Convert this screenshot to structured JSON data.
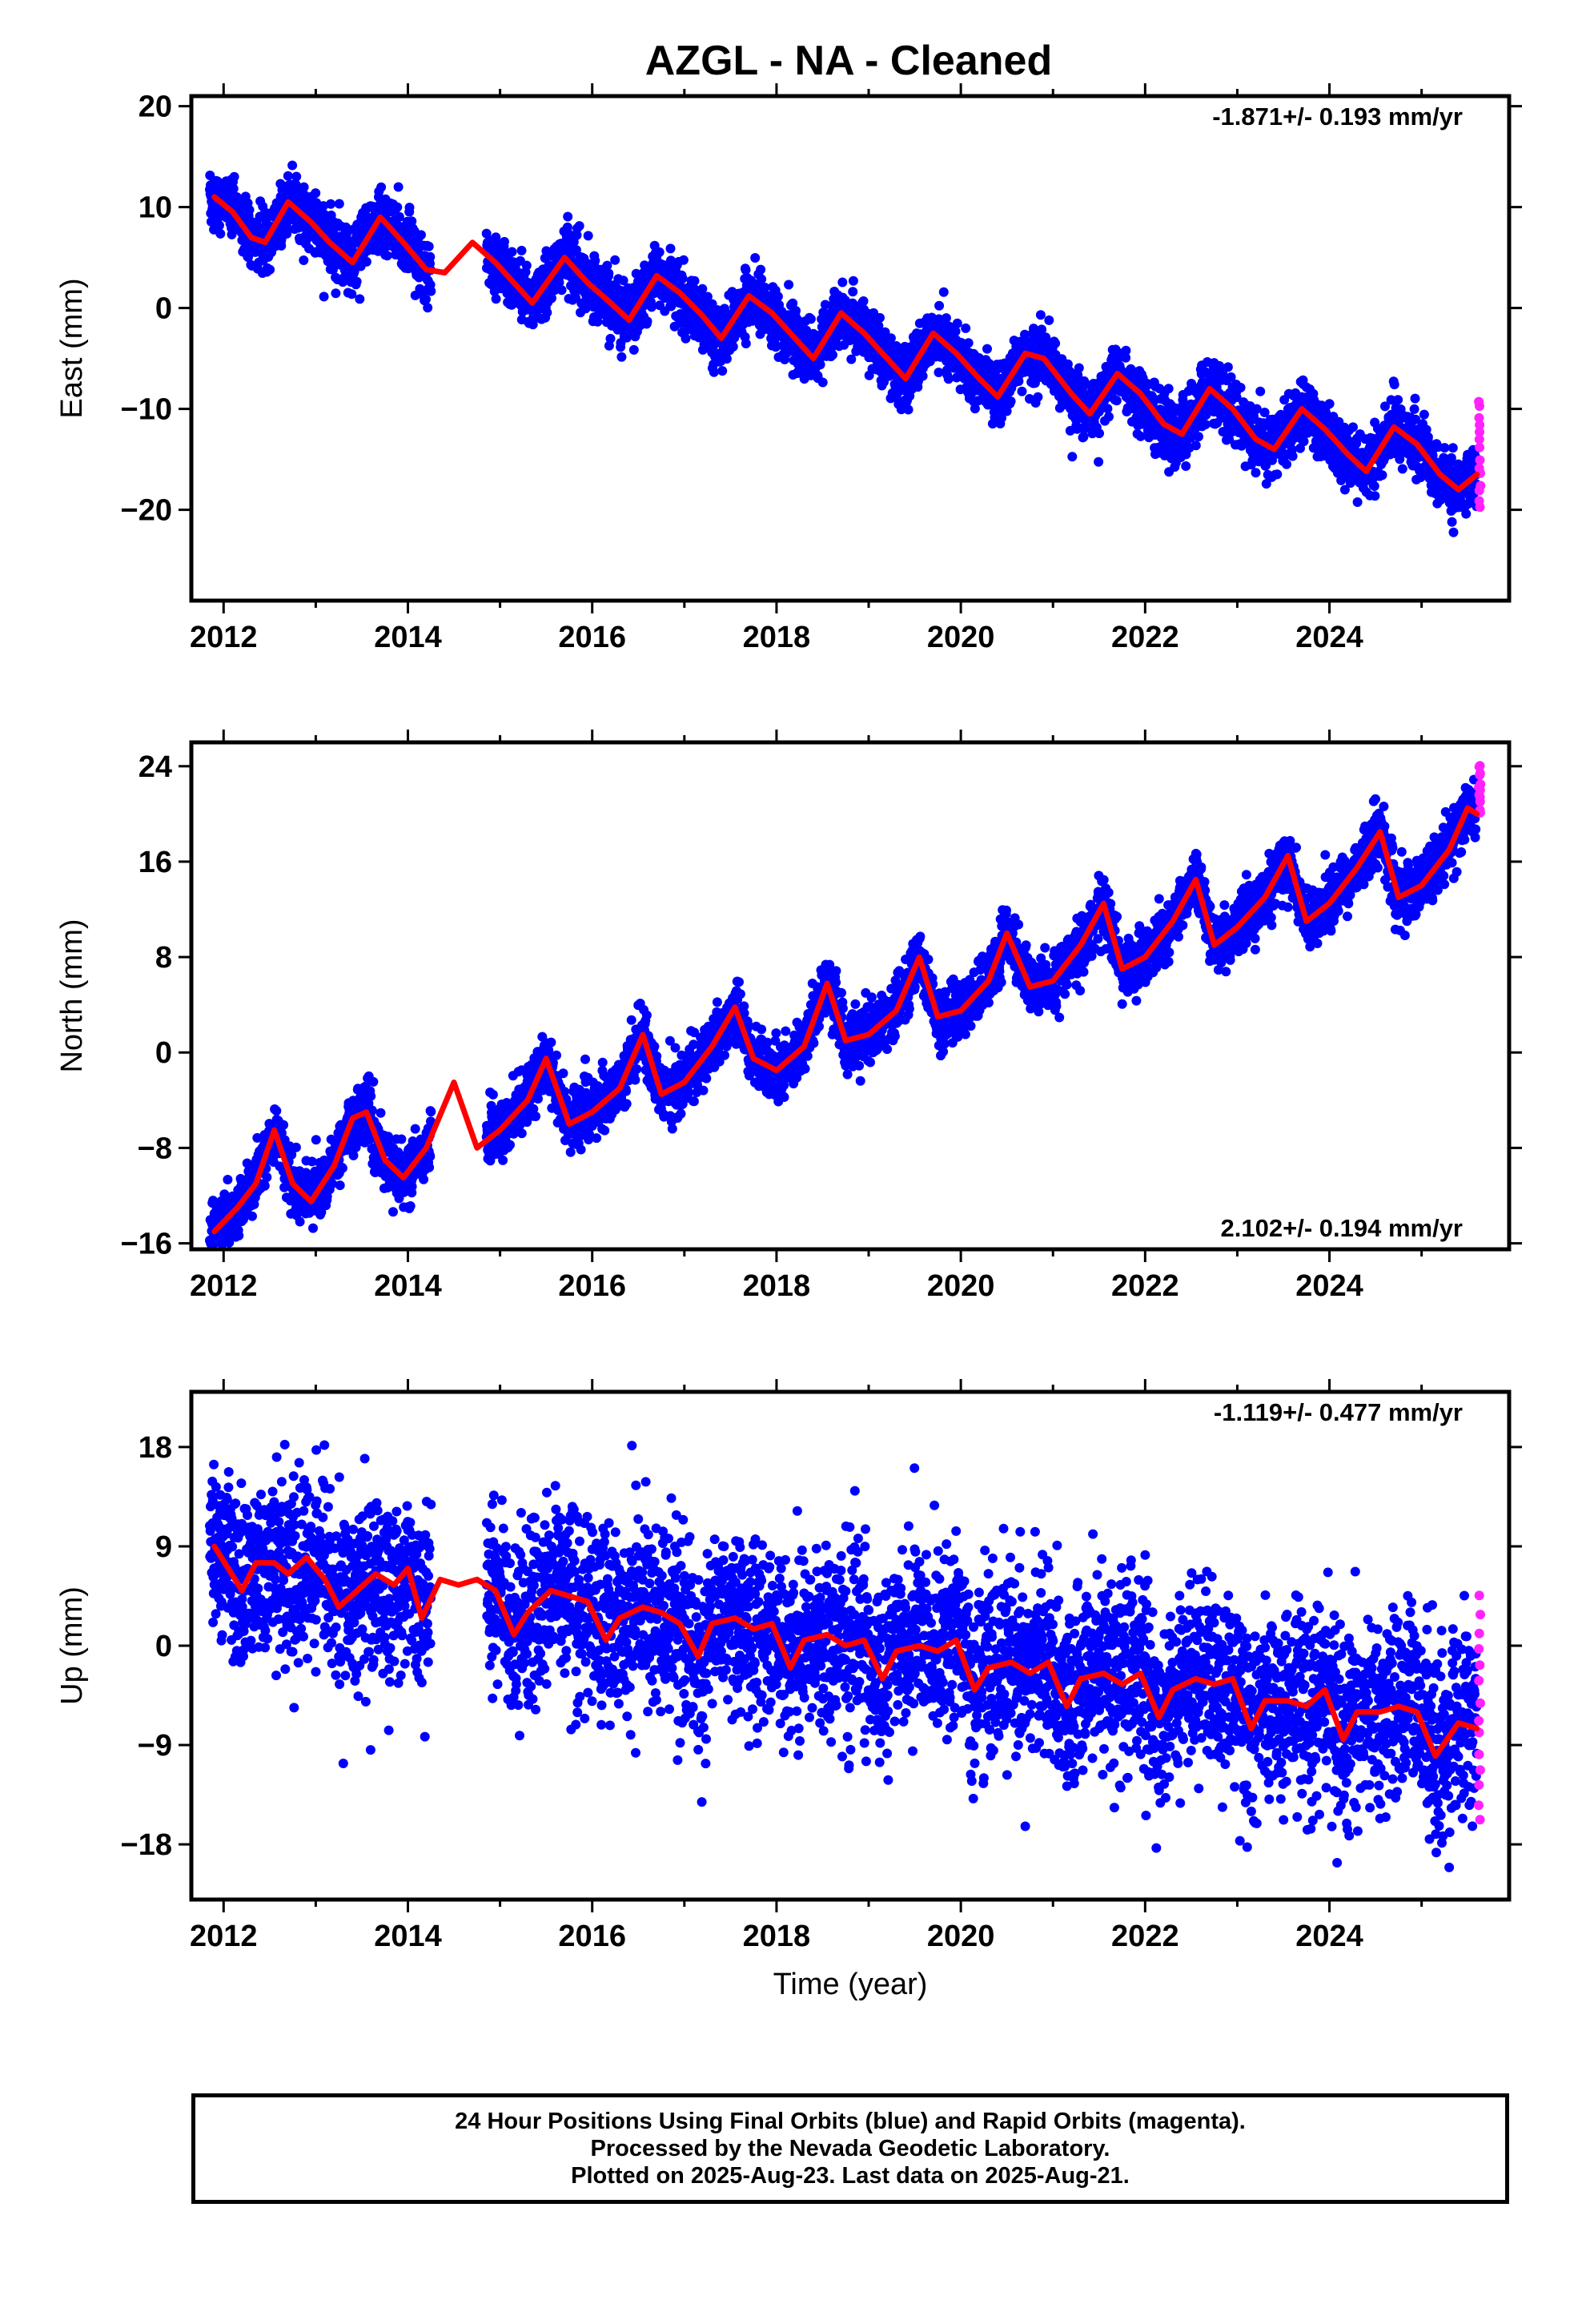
{
  "title": "AZGL  - NA - Cleaned",
  "xlabel": "Time (year)",
  "xticks": [
    "2012",
    "2014",
    "2016",
    "2018",
    "2020",
    "2022",
    "2024"
  ],
  "footer": {
    "line1": "24 Hour Positions Using Final Orbits (blue) and Rapid Orbits (magenta).",
    "line2": "Processed by the Nevada Geodetic Laboratory.",
    "line3": "Plotted on 2025-Aug-23. Last data on 2025-Aug-21."
  },
  "colors": {
    "final_orbits": "#0000ff",
    "rapid_orbits": "#ff22ff",
    "model": "#ff0000",
    "axes": "#000000"
  },
  "chart_data": [
    {
      "type": "scatter",
      "component": "East",
      "ylabel": "East (mm)",
      "rate_label": "-1.871+/- 0.193 mm/yr",
      "rate_position": "top-right",
      "xlim": [
        2011.65,
        2025.95
      ],
      "ylim": [
        -29,
        21
      ],
      "yticks": [
        20,
        10,
        0,
        -10,
        -20
      ],
      "ytick_labels": [
        "20",
        "10",
        "0",
        "-10",
        "-20"
      ],
      "rate": -1.871,
      "gaps": [
        [
          2014.25,
          2014.85
        ]
      ],
      "series": [
        {
          "role": "model",
          "x": [
            2011.9,
            2012.1,
            2012.3,
            2012.45,
            2012.7,
            2012.95,
            2013.15,
            2013.4,
            2013.7,
            2013.95,
            2014.2,
            2014.4,
            2014.7,
            2014.95,
            2015.15,
            2015.35,
            2015.7,
            2015.95,
            2016.2,
            2016.4,
            2016.7,
            2016.95,
            2017.2,
            2017.4,
            2017.7,
            2017.95,
            2018.2,
            2018.4,
            2018.7,
            2018.95,
            2019.2,
            2019.4,
            2019.7,
            2019.95,
            2020.2,
            2020.4,
            2020.7,
            2020.9,
            2021.2,
            2021.4,
            2021.7,
            2021.95,
            2022.2,
            2022.4,
            2022.7,
            2022.95,
            2023.2,
            2023.4,
            2023.7,
            2023.95,
            2024.2,
            2024.4,
            2024.7,
            2024.95,
            2025.2,
            2025.4,
            2025.6
          ],
          "y": [
            11,
            9.5,
            7,
            6.5,
            10.5,
            8.5,
            6.5,
            4.5,
            9,
            6.5,
            3.8,
            3.5,
            6.5,
            4.5,
            2.5,
            0.5,
            5,
            2.5,
            0.5,
            -1.2,
            3.2,
            1.5,
            -0.8,
            -3,
            1.2,
            -0.5,
            -3,
            -5,
            -0.5,
            -2.5,
            -5,
            -7,
            -2.5,
            -4.5,
            -7,
            -8.8,
            -4.5,
            -5,
            -8.5,
            -10.5,
            -6.5,
            -8.5,
            -11.5,
            -12.5,
            -8,
            -10,
            -13,
            -14,
            -10,
            -12,
            -14.5,
            -16.2,
            -11.8,
            -13.5,
            -16.5,
            -18,
            -16.5
          ]
        }
      ],
      "seasonal_amplitude": 2.7,
      "noise_mm": 1.5,
      "rapid_points": {
        "x_start": 2025.63,
        "count": 14,
        "y_range": [
          -20,
          -9
        ]
      }
    },
    {
      "type": "scatter",
      "component": "North",
      "ylabel": "North (mm)",
      "rate_label": "2.102+/- 0.194 mm/yr",
      "rate_position": "bottom-right",
      "xlim": [
        2011.65,
        2025.95
      ],
      "ylim": [
        -16.5,
        26
      ],
      "yticks": [
        24,
        16,
        8,
        0,
        -8,
        -16
      ],
      "ytick_labels": [
        "24",
        "16",
        "8",
        "0",
        "-8",
        "-16"
      ],
      "rate": 2.102,
      "gaps": [
        [
          2014.25,
          2014.85
        ]
      ],
      "series": [
        {
          "role": "model",
          "x": [
            2011.9,
            2012.15,
            2012.35,
            2012.55,
            2012.75,
            2012.95,
            2013.2,
            2013.4,
            2013.55,
            2013.75,
            2013.95,
            2014.2,
            2014.5,
            2014.75,
            2015.0,
            2015.3,
            2015.5,
            2015.75,
            2016.0,
            2016.3,
            2016.55,
            2016.75,
            2017.0,
            2017.3,
            2017.55,
            2017.75,
            2018.0,
            2018.3,
            2018.55,
            2018.75,
            2019.0,
            2019.3,
            2019.55,
            2019.75,
            2020.0,
            2020.3,
            2020.5,
            2020.75,
            2021.0,
            2021.3,
            2021.55,
            2021.75,
            2022.0,
            2022.3,
            2022.55,
            2022.75,
            2023.0,
            2023.3,
            2023.55,
            2023.75,
            2024.0,
            2024.3,
            2024.55,
            2024.75,
            2025.0,
            2025.3,
            2025.5,
            2025.6
          ],
          "y": [
            -15,
            -13,
            -11,
            -6.5,
            -11,
            -12.5,
            -9.5,
            -5.5,
            -5,
            -9,
            -10.5,
            -8,
            -2.5,
            -8,
            -6.5,
            -4,
            -0.5,
            -6,
            -5,
            -3,
            1.5,
            -3.5,
            -2.5,
            0.5,
            3.8,
            -0.5,
            -1.5,
            0.5,
            5.8,
            1,
            1.5,
            3.5,
            8,
            3,
            3.5,
            6,
            10,
            5.5,
            6,
            9,
            12.5,
            7,
            8,
            11,
            14.5,
            9,
            10.5,
            13,
            16.5,
            11,
            12.5,
            15.5,
            18.5,
            13,
            14,
            17,
            20.5,
            20
          ]
        }
      ],
      "seasonal_amplitude": 3.5,
      "noise_mm": 1.2,
      "rapid_points": {
        "x_start": 2025.63,
        "count": 14,
        "y_range": [
          20,
          24
        ]
      }
    },
    {
      "type": "scatter",
      "component": "Up",
      "ylabel": "Up (mm)",
      "rate_label": "-1.119+/- 0.477 mm/yr",
      "rate_position": "top-right",
      "xlim": [
        2011.65,
        2025.95
      ],
      "ylim": [
        -23,
        23
      ],
      "yticks": [
        18,
        9,
        0,
        -9,
        -18
      ],
      "ytick_labels": [
        "18",
        "9",
        "0",
        "-9",
        "-18"
      ],
      "rate": -1.119,
      "gaps": [
        [
          2014.25,
          2014.85
        ]
      ],
      "series": [
        {
          "role": "model",
          "x": [
            2011.9,
            2012.05,
            2012.2,
            2012.35,
            2012.55,
            2012.7,
            2012.9,
            2013.1,
            2013.25,
            2013.45,
            2013.65,
            2013.85,
            2014.0,
            2014.15,
            2014.35,
            2014.55,
            2014.75,
            2014.95,
            2015.15,
            2015.3,
            2015.55,
            2015.75,
            2015.95,
            2016.15,
            2016.3,
            2016.55,
            2016.75,
            2016.95,
            2017.15,
            2017.3,
            2017.55,
            2017.75,
            2017.95,
            2018.15,
            2018.3,
            2018.55,
            2018.75,
            2018.95,
            2019.15,
            2019.3,
            2019.55,
            2019.75,
            2019.95,
            2020.15,
            2020.3,
            2020.55,
            2020.75,
            2020.95,
            2021.15,
            2021.3,
            2021.55,
            2021.75,
            2021.95,
            2022.15,
            2022.3,
            2022.55,
            2022.75,
            2022.95,
            2023.15,
            2023.3,
            2023.55,
            2023.75,
            2023.95,
            2024.15,
            2024.3,
            2024.55,
            2024.75,
            2024.95,
            2025.15,
            2025.4,
            2025.6
          ],
          "y": [
            9,
            7,
            5,
            7.5,
            7.5,
            6.5,
            8,
            6,
            3.5,
            5,
            6.5,
            5.5,
            7,
            2.5,
            6,
            5.5,
            6,
            5,
            1,
            3,
            5,
            4.5,
            4,
            0.5,
            2.5,
            3.5,
            3,
            2,
            -1,
            2,
            2.5,
            1.5,
            2,
            -2,
            0.5,
            1,
            0,
            0.5,
            -3,
            -0.5,
            0,
            -0.5,
            0.5,
            -4,
            -2,
            -1.5,
            -2.5,
            -1.5,
            -5.5,
            -3,
            -2.5,
            -3.5,
            -2.5,
            -6.5,
            -4,
            -3,
            -3.5,
            -3,
            -7.5,
            -5,
            -5,
            -5.5,
            -4,
            -8.5,
            -6,
            -6,
            -5.5,
            -6,
            -10,
            -7,
            -7.5
          ]
        }
      ],
      "seasonal_amplitude": 1.8,
      "noise_mm": 4.2,
      "rapid_points": {
        "x_start": 2025.63,
        "count": 14,
        "y_range": [
          -16,
          4.5
        ]
      }
    }
  ]
}
